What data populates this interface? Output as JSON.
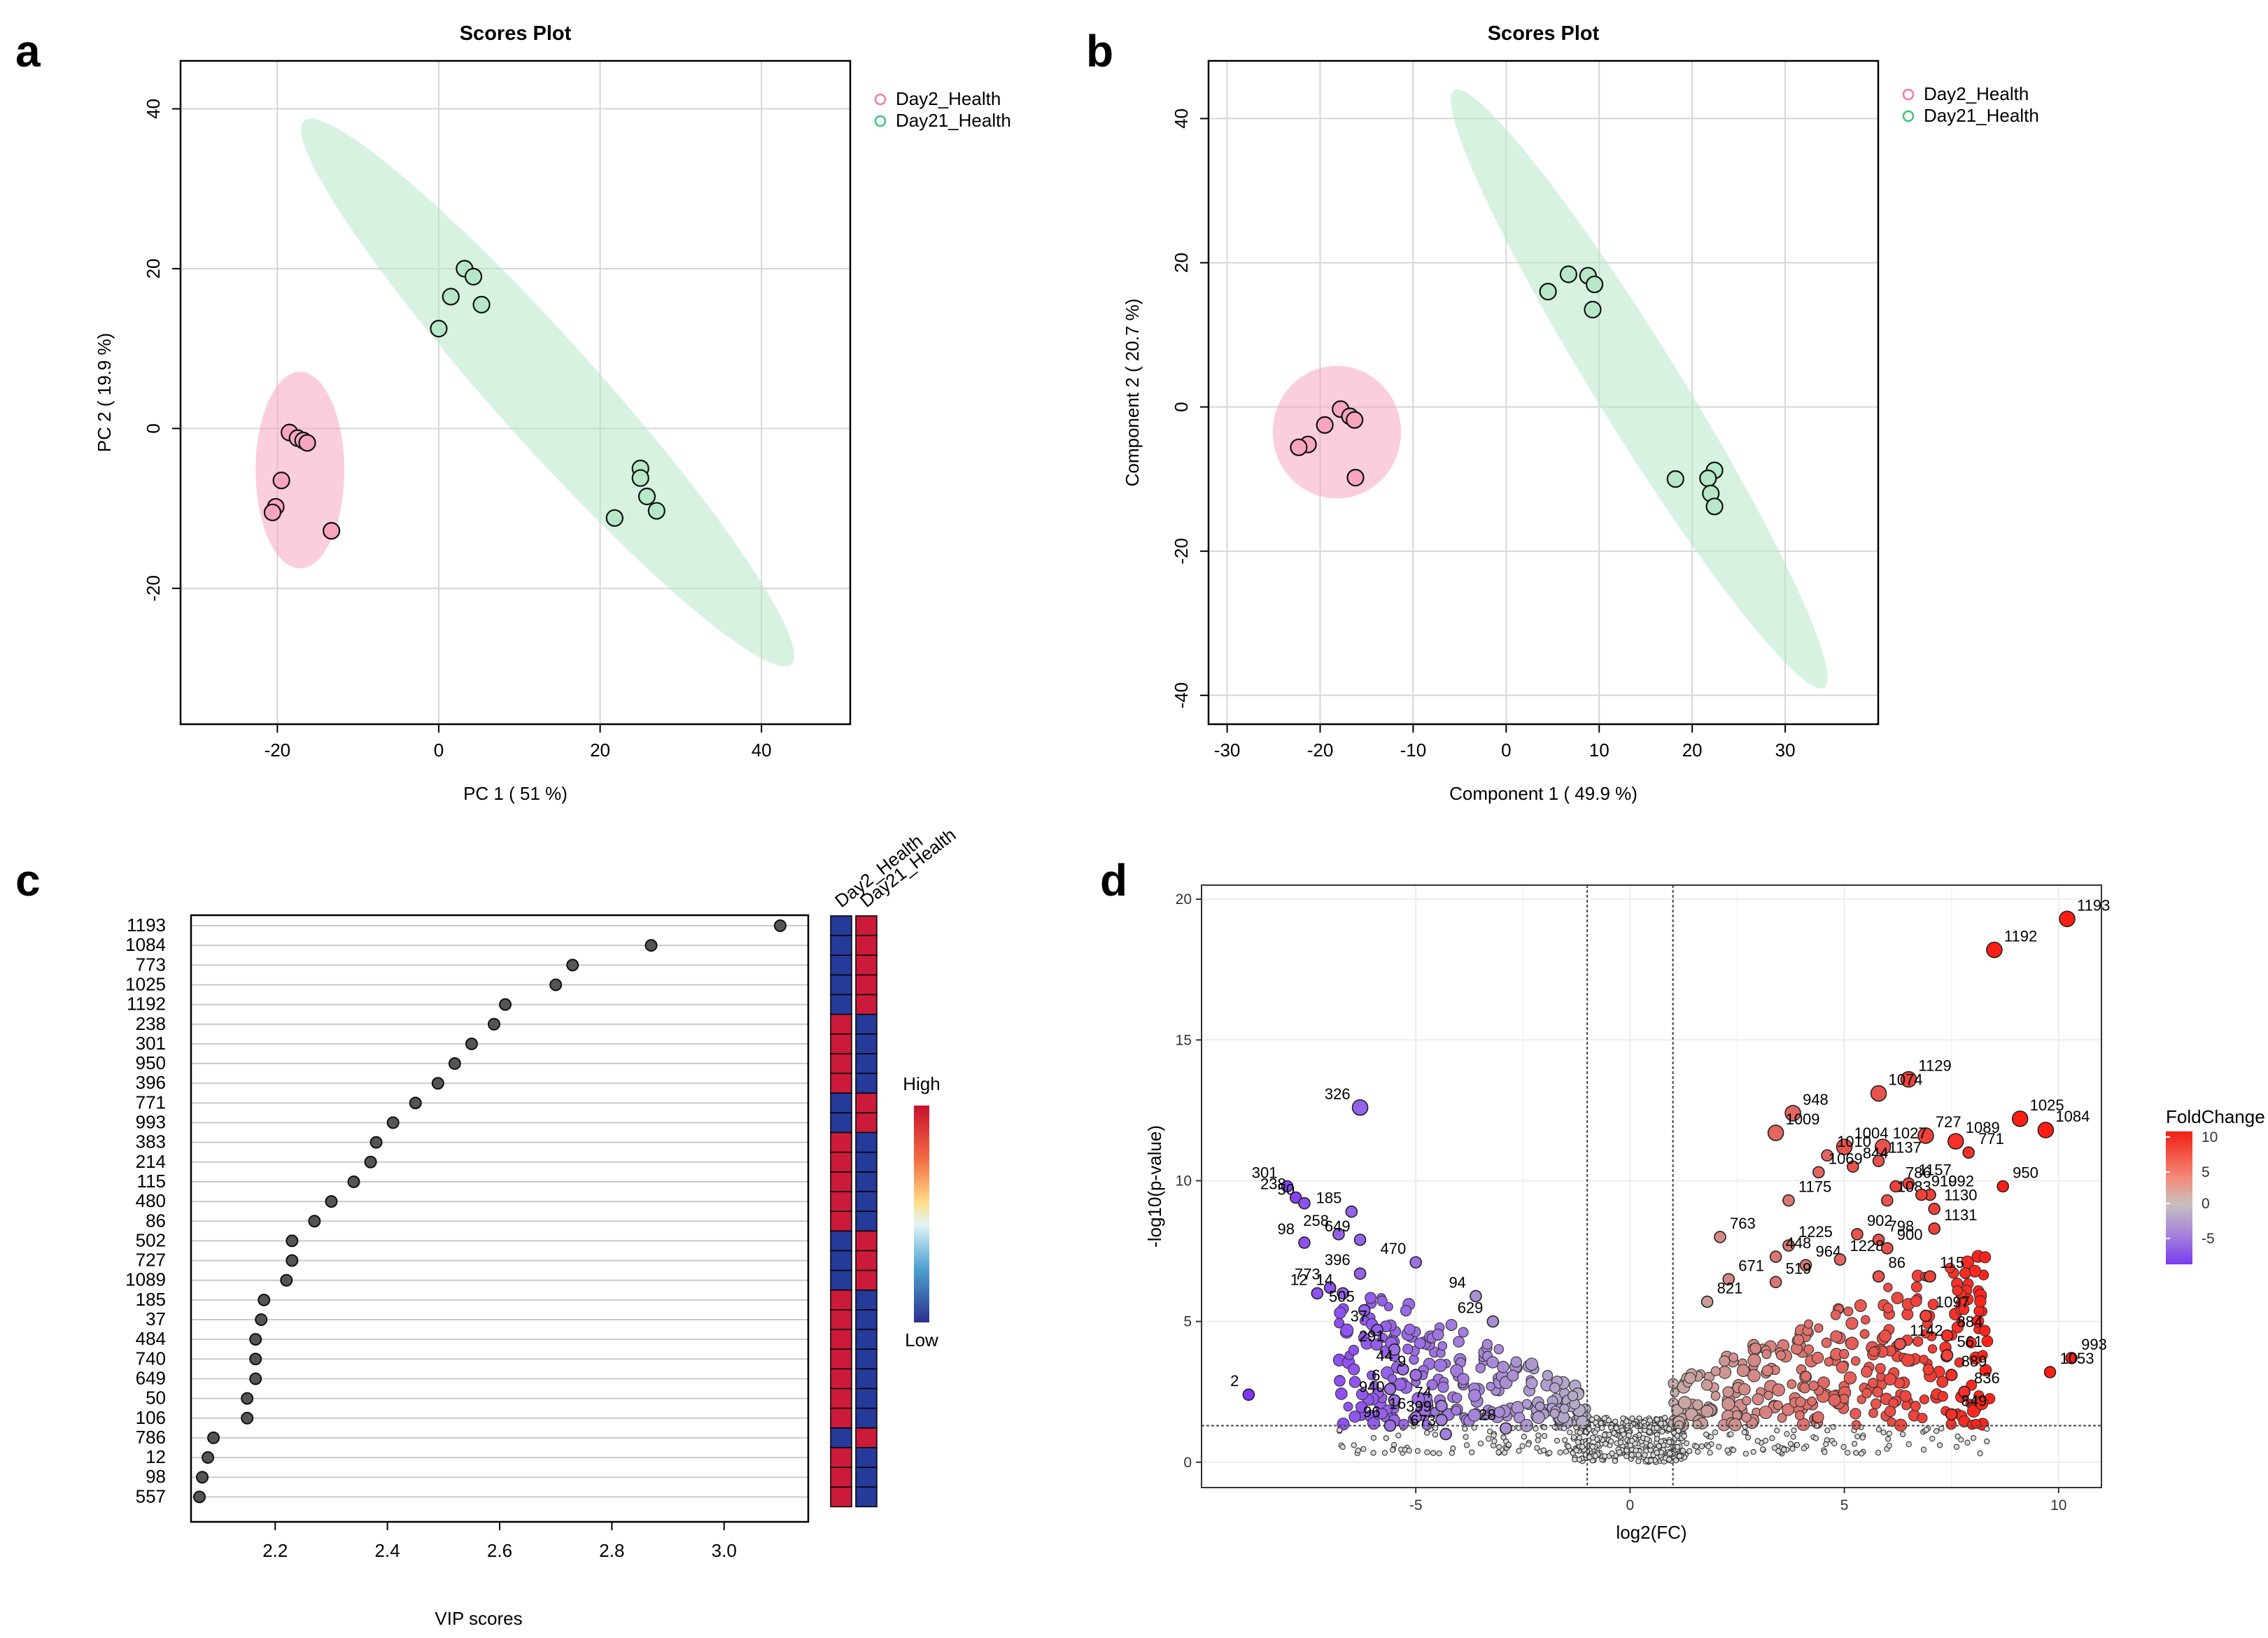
{
  "chart_data": [
    {
      "panel": "a",
      "type": "scatter",
      "title": "Scores Plot",
      "xlabel": "PC 1 ( 51 %)",
      "ylabel": "PC 2 ( 19.9 %)",
      "xlim": [
        -32,
        51
      ],
      "ylim": [
        -37,
        46
      ],
      "xticks": [
        -20,
        0,
        20,
        40
      ],
      "yticks": [
        -20,
        0,
        20,
        40
      ],
      "legend_position": "top-right",
      "series": [
        {
          "name": "Day2_Health",
          "color": "#f07a9e",
          "fill": "#f7a6be",
          "points": [
            [
              -18.5,
              -0.5
            ],
            [
              -17.5,
              -1.2
            ],
            [
              -16.8,
              -1.5
            ],
            [
              -16.3,
              -1.8
            ],
            [
              -19.5,
              -6.5
            ],
            [
              -20.2,
              -9.8
            ],
            [
              -20.6,
              -10.5
            ],
            [
              -13.3,
              -12.8
            ]
          ],
          "ellipse": {
            "cx": -17.2,
            "cy": -5.2,
            "rx": 5.5,
            "ry": 12.3,
            "angle": 0
          }
        },
        {
          "name": "Day21_Health",
          "color": "#3cc47a",
          "fill": "#b6e8c8",
          "points": [
            [
              3.2,
              20
            ],
            [
              4.3,
              19
            ],
            [
              1.5,
              16.5
            ],
            [
              5.3,
              15.5
            ],
            [
              0,
              12.5
            ],
            [
              25,
              -5
            ],
            [
              25,
              -6.2
            ],
            [
              25.8,
              -8.5
            ],
            [
              27,
              -10.3
            ],
            [
              21.8,
              -11.2
            ]
          ],
          "ellipse": {
            "cx": 13.5,
            "cy": 4.5,
            "rx": 45.5,
            "ry": 6.4,
            "angle": -48.4
          }
        }
      ]
    },
    {
      "panel": "b",
      "type": "scatter",
      "title": "Scores Plot",
      "xlabel": "Component 1 ( 49.9 %)",
      "ylabel": "Component 2 ( 20.7 %)",
      "xlim": [
        -32,
        40
      ],
      "ylim": [
        -44,
        48
      ],
      "xticks": [
        -30,
        -20,
        -10,
        0,
        10,
        20,
        30
      ],
      "yticks": [
        -40,
        -20,
        0,
        20,
        40
      ],
      "legend_position": "top-right",
      "series": [
        {
          "name": "Day2_Health",
          "color": "#f07a9e",
          "fill": "#f7a6be",
          "points": [
            [
              -17.8,
              -0.3
            ],
            [
              -16.8,
              -1.3
            ],
            [
              -16.3,
              -1.8
            ],
            [
              -19.5,
              -2.5
            ],
            [
              -21.3,
              -5.2
            ],
            [
              -22.3,
              -5.6
            ],
            [
              -16.2,
              -9.8
            ]
          ],
          "ellipse": {
            "cx": -18.2,
            "cy": -3.5,
            "rx": 6.9,
            "ry": 9.2,
            "angle": 0
          }
        },
        {
          "name": "Day21_Health",
          "color": "#3cc47a",
          "fill": "#b6e8c8",
          "points": [
            [
              6.7,
              18.4
            ],
            [
              8.8,
              18.2
            ],
            [
              9.5,
              17
            ],
            [
              4.5,
              16
            ],
            [
              9.3,
              13.5
            ],
            [
              22.4,
              -8.8
            ],
            [
              21.7,
              -9.9
            ],
            [
              22,
              -12
            ],
            [
              22.4,
              -13.8
            ],
            [
              18.2,
              -10
            ]
          ],
          "ellipse": {
            "cx": 14.3,
            "cy": 2.5,
            "rx": 46,
            "ry": 4.8,
            "angle": -64.5
          }
        }
      ]
    },
    {
      "panel": "c",
      "type": "dot",
      "xlabel": "VIP scores",
      "xlim": [
        2.05,
        3.15
      ],
      "xticks": [
        "2.2",
        "2.4",
        "2.6",
        "2.8",
        "3.0"
      ],
      "features": [
        "1193",
        "1084",
        "773",
        "1025",
        "1192",
        "238",
        "301",
        "950",
        "396",
        "771",
        "993",
        "383",
        "214",
        "115",
        "480",
        "86",
        "502",
        "727",
        "1089",
        "185",
        "37",
        "484",
        "740",
        "649",
        "50",
        "106",
        "786",
        "12",
        "98",
        "557"
      ],
      "values": [
        3.1,
        2.87,
        2.73,
        2.7,
        2.61,
        2.59,
        2.55,
        2.52,
        2.49,
        2.45,
        2.41,
        2.38,
        2.37,
        2.34,
        2.3,
        2.27,
        2.23,
        2.23,
        2.22,
        2.18,
        2.175,
        2.165,
        2.165,
        2.165,
        2.15,
        2.15,
        2.09,
        2.08,
        2.07,
        2.065
      ],
      "heatmap_columns": [
        "Day2_Health",
        "Day21_Health"
      ],
      "heatmap_day2_high": [
        0,
        0,
        0,
        0,
        0,
        1,
        1,
        1,
        1,
        0,
        0,
        1,
        1,
        1,
        1,
        1,
        0,
        0,
        0,
        1,
        1,
        1,
        1,
        1,
        1,
        1,
        0,
        1,
        1,
        1
      ],
      "colorbar_high": "High",
      "colorbar_low": "Low",
      "high_color": "#cc1a3a",
      "low_color": "#263a9a"
    },
    {
      "panel": "d",
      "type": "scatter",
      "subtype": "volcano",
      "xlabel": "log2(FC)",
      "ylabel": "-log10(p-value)",
      "xlim": [
        -10,
        11
      ],
      "ylim": [
        -1,
        20
      ],
      "xticks": [
        -5,
        0,
        5,
        10
      ],
      "yticks": [
        0,
        5,
        10,
        15,
        20
      ],
      "fc_threshold": [
        -1,
        1
      ],
      "p_threshold": 1.3,
      "colorbar_title": "FoldChange",
      "colorbar_ticks": [
        "10",
        "5",
        "0",
        "-5"
      ],
      "labeled_points": [
        {
          "label": "1193",
          "x": 10.2,
          "y": 19.3,
          "fc": 10
        },
        {
          "label": "1192",
          "x": 8.5,
          "y": 18.2,
          "fc": 9
        },
        {
          "label": "1129",
          "x": 6.5,
          "y": 13.6,
          "fc": 7
        },
        {
          "label": "948",
          "x": 3.8,
          "y": 12.4,
          "fc": 5
        },
        {
          "label": "1074",
          "x": 5.8,
          "y": 13.1,
          "fc": 6
        },
        {
          "label": "1025",
          "x": 9.1,
          "y": 12.2,
          "fc": 9
        },
        {
          "label": "727",
          "x": 6.9,
          "y": 11.6,
          "fc": 7
        },
        {
          "label": "1009",
          "x": 3.4,
          "y": 11.7,
          "fc": 5
        },
        {
          "label": "1004",
          "x": 5.0,
          "y": 11.2,
          "fc": 6
        },
        {
          "label": "1027",
          "x": 5.9,
          "y": 11.2,
          "fc": 6
        },
        {
          "label": "1089",
          "x": 7.6,
          "y": 11.4,
          "fc": 8
        },
        {
          "label": "1084",
          "x": 9.7,
          "y": 11.8,
          "fc": 10
        },
        {
          "label": "771",
          "x": 7.9,
          "y": 11.0,
          "fc": 8
        },
        {
          "label": "1010",
          "x": 4.6,
          "y": 10.9,
          "fc": 5
        },
        {
          "label": "844",
          "x": 5.2,
          "y": 10.5,
          "fc": 6
        },
        {
          "label": "1137",
          "x": 5.8,
          "y": 10.7,
          "fc": 6
        },
        {
          "label": "1069",
          "x": 4.4,
          "y": 10.3,
          "fc": 5
        },
        {
          "label": "786",
          "x": 6.2,
          "y": 9.8,
          "fc": 7
        },
        {
          "label": "1157",
          "x": 6.5,
          "y": 9.9,
          "fc": 7
        },
        {
          "label": "1175",
          "x": 3.7,
          "y": 9.3,
          "fc": 4
        },
        {
          "label": "1083",
          "x": 6.0,
          "y": 9.3,
          "fc": 6
        },
        {
          "label": "1092",
          "x": 7.0,
          "y": 9.5,
          "fc": 7
        },
        {
          "label": "950",
          "x": 8.7,
          "y": 9.8,
          "fc": 9
        },
        {
          "label": "919",
          "x": 6.8,
          "y": 9.5,
          "fc": 7
        },
        {
          "label": "1130",
          "x": 7.1,
          "y": 9.0,
          "fc": 7
        },
        {
          "label": "763",
          "x": 2.1,
          "y": 8.0,
          "fc": 3
        },
        {
          "label": "1225",
          "x": 3.7,
          "y": 7.7,
          "fc": 4
        },
        {
          "label": "902",
          "x": 5.3,
          "y": 8.1,
          "fc": 6
        },
        {
          "label": "798",
          "x": 5.8,
          "y": 7.9,
          "fc": 6
        },
        {
          "label": "1131",
          "x": 7.1,
          "y": 8.3,
          "fc": 7
        },
        {
          "label": "448",
          "x": 3.4,
          "y": 7.3,
          "fc": 4
        },
        {
          "label": "964",
          "x": 4.1,
          "y": 7.0,
          "fc": 4
        },
        {
          "label": "1228",
          "x": 4.9,
          "y": 7.2,
          "fc": 5
        },
        {
          "label": "900",
          "x": 6.0,
          "y": 7.6,
          "fc": 6
        },
        {
          "label": "86",
          "x": 5.8,
          "y": 6.6,
          "fc": 6
        },
        {
          "label": "671",
          "x": 2.3,
          "y": 6.5,
          "fc": 3
        },
        {
          "label": "519",
          "x": 3.4,
          "y": 6.4,
          "fc": 4
        },
        {
          "label": "115",
          "x": 7.0,
          "y": 6.6,
          "fc": 7
        },
        {
          "label": "821",
          "x": 1.8,
          "y": 5.7,
          "fc": 2
        },
        {
          "label": "1097",
          "x": 6.9,
          "y": 5.2,
          "fc": 7
        },
        {
          "label": "884",
          "x": 7.4,
          "y": 4.5,
          "fc": 8
        },
        {
          "label": "1142",
          "x": 6.3,
          "y": 4.2,
          "fc": 6
        },
        {
          "label": "561",
          "x": 7.4,
          "y": 3.8,
          "fc": 7
        },
        {
          "label": "993",
          "x": 10.3,
          "y": 3.7,
          "fc": 10
        },
        {
          "label": "889",
          "x": 7.5,
          "y": 3.1,
          "fc": 8
        },
        {
          "label": "1053",
          "x": 9.8,
          "y": 3.2,
          "fc": 10
        },
        {
          "label": "836",
          "x": 7.8,
          "y": 2.5,
          "fc": 8
        },
        {
          "label": "849",
          "x": 7.5,
          "y": 1.7,
          "fc": 8
        },
        {
          "label": "326",
          "x": -6.3,
          "y": 12.6,
          "fc": -6
        },
        {
          "label": "301",
          "x": -8.0,
          "y": 9.8,
          "fc": -8
        },
        {
          "label": "238",
          "x": -7.8,
          "y": 9.4,
          "fc": -8
        },
        {
          "label": "50",
          "x": -7.6,
          "y": 9.2,
          "fc": -7
        },
        {
          "label": "185",
          "x": -6.5,
          "y": 8.9,
          "fc": -6
        },
        {
          "label": "258",
          "x": -6.8,
          "y": 8.1,
          "fc": -6
        },
        {
          "label": "649",
          "x": -6.3,
          "y": 7.9,
          "fc": -6
        },
        {
          "label": "98",
          "x": -7.6,
          "y": 7.8,
          "fc": -7
        },
        {
          "label": "470",
          "x": -5.0,
          "y": 7.1,
          "fc": -5
        },
        {
          "label": "396",
          "x": -6.3,
          "y": 6.7,
          "fc": -6
        },
        {
          "label": "773",
          "x": -7.0,
          "y": 6.2,
          "fc": -7
        },
        {
          "label": "14",
          "x": -6.7,
          "y": 6.0,
          "fc": -6
        },
        {
          "label": "12",
          "x": -7.3,
          "y": 6.0,
          "fc": -7
        },
        {
          "label": "505",
          "x": -6.2,
          "y": 5.4,
          "fc": -6
        },
        {
          "label": "94",
          "x": -3.6,
          "y": 5.9,
          "fc": -3
        },
        {
          "label": "629",
          "x": -3.2,
          "y": 5.0,
          "fc": -3
        },
        {
          "label": "37",
          "x": -5.9,
          "y": 4.7,
          "fc": -6
        },
        {
          "label": "291",
          "x": -5.5,
          "y": 4.0,
          "fc": -5
        },
        {
          "label": "44",
          "x": -5.3,
          "y": 3.3,
          "fc": -5
        },
        {
          "label": "9",
          "x": -5.0,
          "y": 3.1,
          "fc": -5
        },
        {
          "label": "6",
          "x": -5.6,
          "y": 2.6,
          "fc": -5
        },
        {
          "label": "940",
          "x": -5.5,
          "y": 2.2,
          "fc": -5
        },
        {
          "label": "74",
          "x": -4.4,
          "y": 2.0,
          "fc": -4
        },
        {
          "label": "16",
          "x": -5.0,
          "y": 1.6,
          "fc": -5
        },
        {
          "label": "399",
          "x": -4.4,
          "y": 1.5,
          "fc": -4
        },
        {
          "label": "96",
          "x": -5.6,
          "y": 1.3,
          "fc": -5
        },
        {
          "label": "2",
          "x": -8.9,
          "y": 2.4,
          "fc": -9
        },
        {
          "label": "673",
          "x": -4.3,
          "y": 1.0,
          "fc": -4
        },
        {
          "label": "28",
          "x": -2.9,
          "y": 1.2,
          "fc": -3
        }
      ]
    }
  ]
}
